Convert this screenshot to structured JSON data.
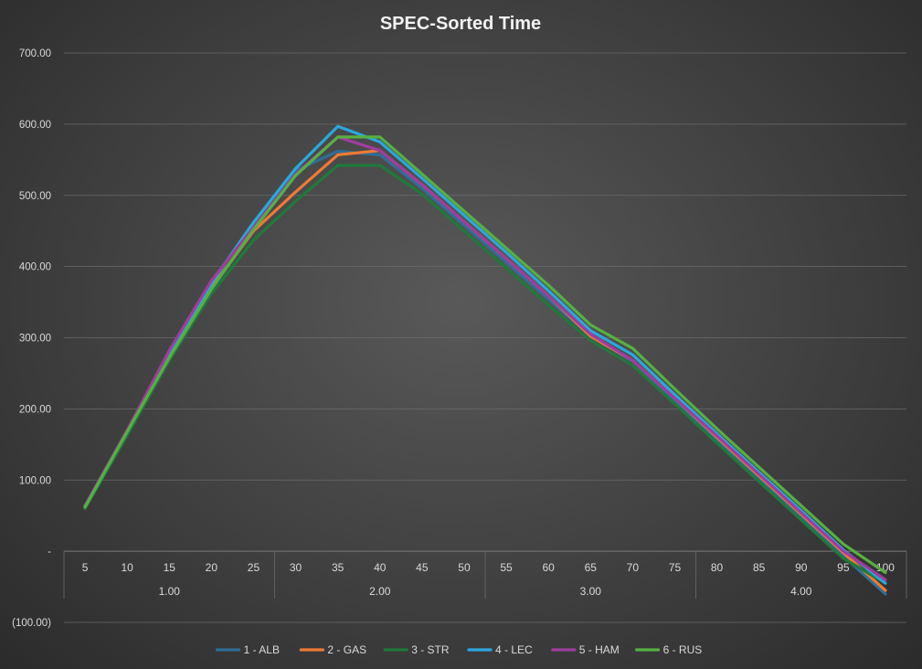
{
  "chart_data": {
    "type": "line",
    "title": "SPEC-Sorted Time",
    "xlabel": "",
    "ylabel": "",
    "x": [
      "5",
      "10",
      "15",
      "20",
      "25",
      "30",
      "35",
      "40",
      "45",
      "50",
      "55",
      "60",
      "65",
      "70",
      "75",
      "80",
      "85",
      "90",
      "95",
      "100"
    ],
    "groups": [
      {
        "label": "1.00",
        "categories": [
          "5",
          "10",
          "15",
          "20",
          "25"
        ]
      },
      {
        "label": "2.00",
        "categories": [
          "30",
          "35",
          "40",
          "45",
          "50"
        ]
      },
      {
        "label": "3.00",
        "categories": [
          "55",
          "60",
          "65",
          "70",
          "75"
        ]
      },
      {
        "label": "4.00",
        "categories": [
          "80",
          "85",
          "90",
          "95",
          "100"
        ]
      }
    ],
    "ylim": [
      -100,
      700
    ],
    "y_ticks": [
      {
        "value": 700,
        "label": "700.00"
      },
      {
        "value": 600,
        "label": "600.00"
      },
      {
        "value": 500,
        "label": "500.00"
      },
      {
        "value": 400,
        "label": "400.00"
      },
      {
        "value": 300,
        "label": "300.00"
      },
      {
        "value": 200,
        "label": "200.00"
      },
      {
        "value": 100,
        "label": "100.00"
      },
      {
        "value": 0,
        "label": "-"
      },
      {
        "value": -100,
        "label": "(100.00)"
      }
    ],
    "grid": true,
    "legend_position": "bottom",
    "series": [
      {
        "name": "1 - ALB",
        "color": "#2e6e96",
        "values": [
          62,
          168,
          280,
          378,
          462,
          535,
          562,
          557,
          510,
          458,
          406,
          354,
          302,
          267,
          212,
          155,
          101,
          47,
          -7,
          -60
        ]
      },
      {
        "name": "2 - GAS",
        "color": "#ee7a34",
        "values": [
          62,
          168,
          272,
          370,
          450,
          505,
          557,
          563,
          515,
          463,
          411,
          359,
          302,
          268,
          215,
          160,
          106,
          52,
          -2,
          -55
        ]
      },
      {
        "name": "3 - STR",
        "color": "#1f7a3a",
        "values": [
          60,
          163,
          268,
          362,
          437,
          492,
          542,
          542,
          502,
          450,
          398,
          346,
          296,
          261,
          207,
          152,
          98,
          44,
          -10,
          -45
        ]
      },
      {
        "name": "4 - LEC",
        "color": "#2aa8dc",
        "values": [
          62,
          168,
          275,
          376,
          462,
          538,
          597,
          575,
          524,
          472,
          420,
          366,
          310,
          276,
          220,
          165,
          111,
          57,
          2,
          -45
        ]
      },
      {
        "name": "5 - HAM",
        "color": "#a03c9f",
        "values": [
          64,
          170,
          282,
          380,
          455,
          530,
          582,
          563,
          515,
          463,
          411,
          359,
          305,
          268,
          215,
          162,
          108,
          54,
          0,
          -40
        ]
      },
      {
        "name": "6 - RUS",
        "color": "#57b040",
        "values": [
          62,
          168,
          272,
          368,
          452,
          528,
          582,
          582,
          530,
          478,
          426,
          374,
          318,
          285,
          228,
          172,
          118,
          64,
          10,
          -30
        ]
      }
    ]
  }
}
